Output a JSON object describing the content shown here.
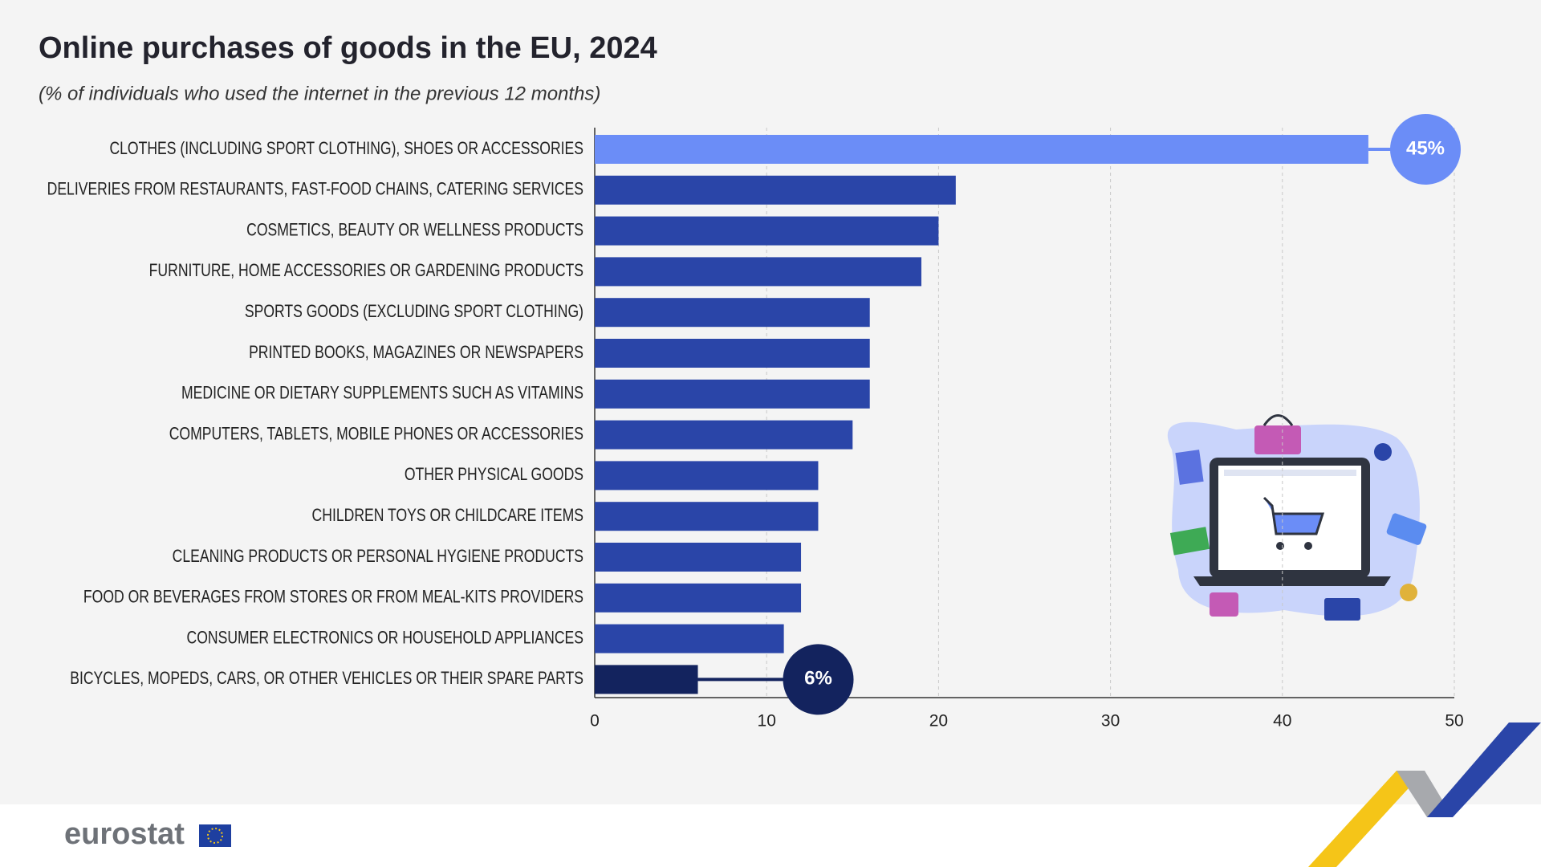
{
  "chart_data": {
    "type": "hbar",
    "title": "Online purchases of goods in the EU, 2024",
    "subtitle": "(% of individuals who used the internet in the previous 12 months)",
    "categories": [
      "CLOTHES (INCLUDING SPORT CLOTHING), SHOES OR ACCESSORIES",
      "DELIVERIES FROM RESTAURANTS, FAST-FOOD CHAINS, CATERING SERVICES",
      "COSMETICS, BEAUTY OR WELLNESS PRODUCTS",
      "FURNITURE, HOME ACCESSORIES OR GARDENING PRODUCTS",
      "SPORTS GOODS (EXCLUDING SPORT CLOTHING)",
      "PRINTED BOOKS, MAGAZINES OR NEWSPAPERS",
      "MEDICINE OR DIETARY SUPPLEMENTS SUCH AS VITAMINS",
      "COMPUTERS, TABLETS, MOBILE PHONES OR ACCESSORIES",
      "OTHER PHYSICAL GOODS",
      "CHILDREN TOYS OR CHILDCARE ITEMS",
      "CLEANING PRODUCTS OR PERSONAL HYGIENE PRODUCTS",
      "FOOD OR BEVERAGES FROM STORES OR FROM MEAL-KITS PROVIDERS",
      "CONSUMER ELECTRONICS OR HOUSEHOLD APPLIANCES",
      "BICYCLES, MOPEDS, CARS, OR OTHER VEHICLES OR THEIR SPARE PARTS"
    ],
    "values": [
      45,
      21,
      20,
      19,
      16,
      16,
      16,
      15,
      13,
      13,
      12,
      12,
      11,
      6
    ],
    "value_labels": [
      "45%",
      null,
      null,
      null,
      null,
      null,
      null,
      null,
      null,
      null,
      null,
      null,
      null,
      "6%"
    ],
    "colors": [
      "#6b8df7",
      "#2a45a8",
      "#2a45a8",
      "#2a45a8",
      "#2a45a8",
      "#2a45a8",
      "#2a45a8",
      "#2a45a8",
      "#2a45a8",
      "#2a45a8",
      "#2a45a8",
      "#2a45a8",
      "#2a45a8",
      "#13235e"
    ],
    "xlim": [
      0,
      50
    ],
    "xticks": [
      0,
      10,
      20,
      30,
      40,
      50
    ],
    "grid": true
  },
  "logo": "eurostat"
}
